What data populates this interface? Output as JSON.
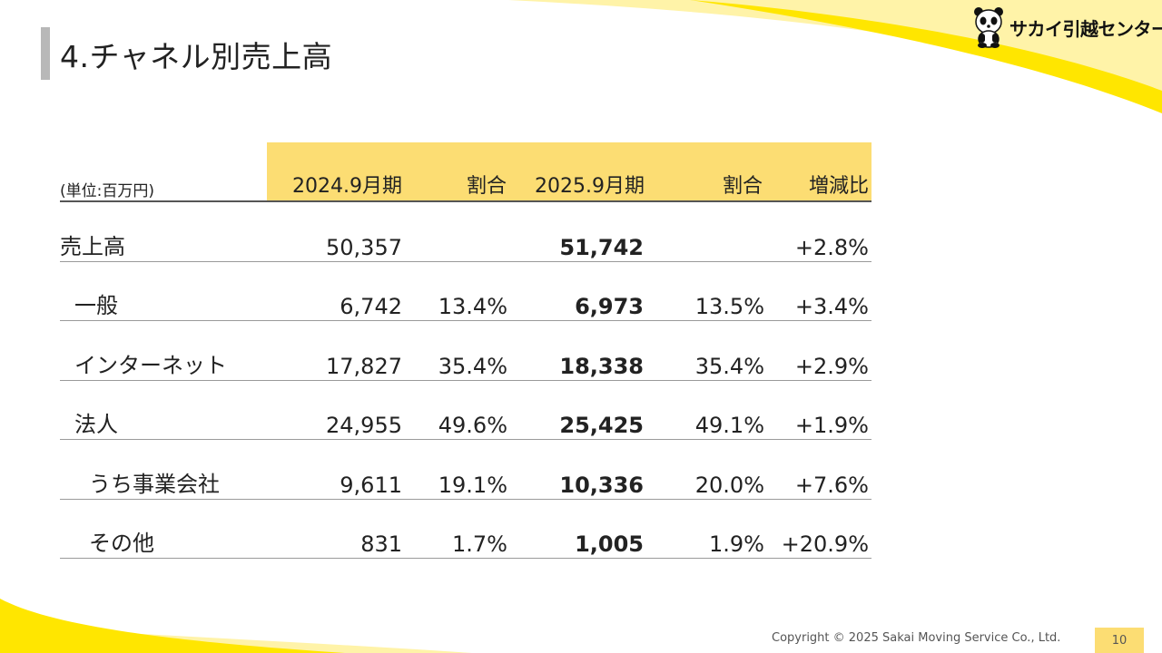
{
  "slide": {
    "title": "4.チャネル別売上高",
    "logo_text": "サカイ引越センター",
    "copyright": "Copyright © 2025 Sakai Moving Service Co., Ltd.",
    "page_number": "10",
    "colors": {
      "accent": "#fcdd73",
      "deco_yellow": "#ffe600",
      "title_bar": "#b8b8b8"
    }
  },
  "table": {
    "unit_label": "(単位:百万円)",
    "headers": [
      "2024.9月期",
      "割合",
      "2025.9月期",
      "割合",
      "増減比"
    ],
    "rows": [
      {
        "label": "売上高",
        "v2024": "50,357",
        "r2024": "",
        "v2025": "51,742",
        "r2025": "",
        "change": "+2.8%"
      },
      {
        "label": "一般",
        "v2024": "6,742",
        "r2024": "13.4%",
        "v2025": "6,973",
        "r2025": "13.5%",
        "change": "+3.4%"
      },
      {
        "label": "インターネット",
        "v2024": "17,827",
        "r2024": "35.4%",
        "v2025": "18,338",
        "r2025": "35.4%",
        "change": "+2.9%"
      },
      {
        "label": "法人",
        "v2024": "24,955",
        "r2024": "49.6%",
        "v2025": "25,425",
        "r2025": "49.1%",
        "change": "+1.9%"
      },
      {
        "label": "うち事業会社",
        "v2024": "9,611",
        "r2024": "19.1%",
        "v2025": "10,336",
        "r2025": "20.0%",
        "change": "+7.6%"
      },
      {
        "label": "その他",
        "v2024": "831",
        "r2024": "1.7%",
        "v2025": "1,005",
        "r2025": "1.9%",
        "change": "+20.9%"
      }
    ]
  }
}
